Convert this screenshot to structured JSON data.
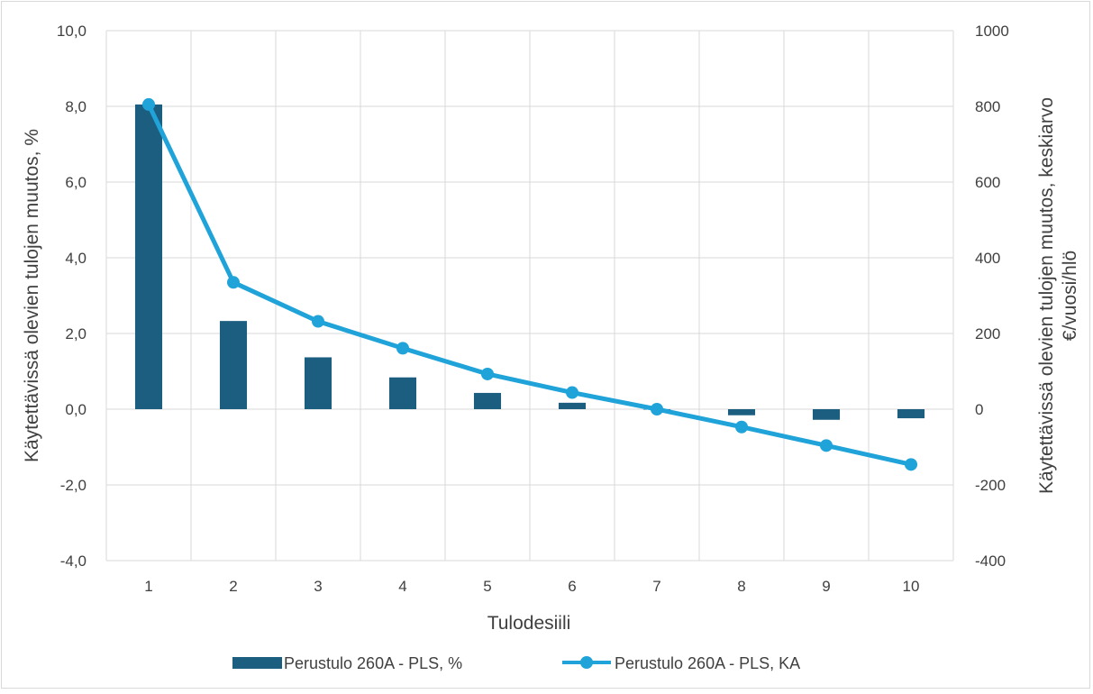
{
  "chart_data": {
    "type": "bar",
    "title": "",
    "categories": [
      "1",
      "2",
      "3",
      "4",
      "5",
      "6",
      "7",
      "8",
      "9",
      "10"
    ],
    "xlabel": "Tulodesiili",
    "ylabel_left": "Käytettävissä olevien tulojen muutos, %",
    "ylabel_right_line1": "Käytettävissä olevien tulojen muutos, keskiarvo",
    "ylabel_right_line2": "€/vuosi/hlö",
    "y_left": {
      "min": -4,
      "max": 10,
      "step": 2,
      "tick_labels": [
        "-4,0",
        "-2,0",
        "0,0",
        "2,0",
        "4,0",
        "6,0",
        "8,0",
        "10,0"
      ]
    },
    "y_right": {
      "min": -400,
      "max": 1000,
      "step": 200,
      "tick_labels": [
        "-400",
        "-200",
        "0",
        "200",
        "400",
        "600",
        "800",
        "1000"
      ]
    },
    "grid": true,
    "legend_position": "bottom",
    "series": [
      {
        "name": "Perustulo 260A - PLS, %",
        "type": "bar",
        "axis": "left",
        "color": "#1b5e80",
        "values": [
          8.05,
          2.33,
          1.37,
          0.84,
          0.43,
          0.17,
          0.0,
          -0.16,
          -0.28,
          -0.24
        ]
      },
      {
        "name": "Perustulo 260A - PLS, KA",
        "type": "line",
        "axis": "right",
        "color": "#1fa3d9",
        "values": [
          805,
          335,
          232,
          161,
          93,
          44,
          0,
          -47,
          -96,
          -146
        ]
      }
    ]
  }
}
